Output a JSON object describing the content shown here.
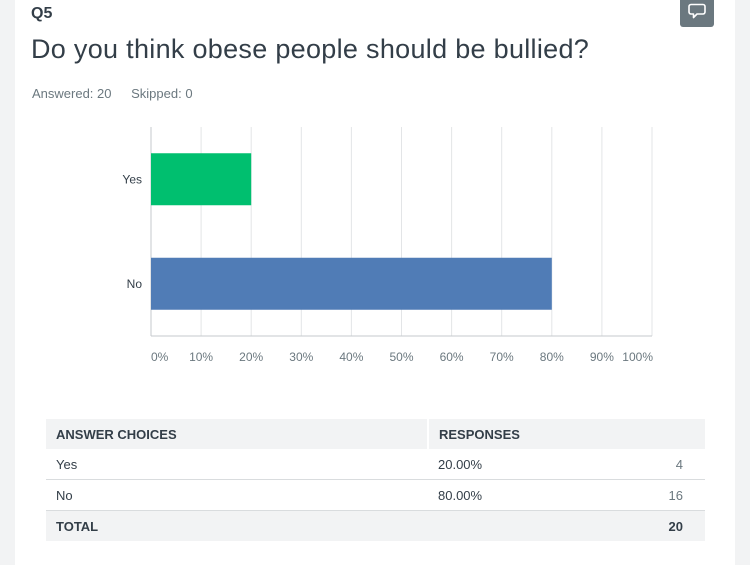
{
  "question": {
    "number": "Q5",
    "title": "Do you think obese people should be bullied?",
    "answered": "Answered: 20",
    "skipped": "Skipped: 0"
  },
  "colors": {
    "yes": "#00bf6f",
    "no": "#507cb6",
    "grid": "#e3e5e7",
    "axis": "#c5c9cc"
  },
  "chart_data": {
    "type": "bar",
    "orientation": "horizontal",
    "title": "Do you think obese people should be bullied?",
    "categories": [
      "Yes",
      "No"
    ],
    "values": [
      20,
      80
    ],
    "value_unit": "%",
    "xlim": [
      0,
      100
    ],
    "xticks": [
      "0%",
      "10%",
      "20%",
      "30%",
      "40%",
      "50%",
      "60%",
      "70%",
      "80%",
      "90%",
      "100%"
    ],
    "grid": true,
    "xlabel": "",
    "ylabel": ""
  },
  "table": {
    "headers": [
      "ANSWER CHOICES",
      "RESPONSES"
    ],
    "rows": [
      {
        "choice": "Yes",
        "percent": "20.00%",
        "count": "4"
      },
      {
        "choice": "No",
        "percent": "80.00%",
        "count": "16"
      }
    ],
    "total_label": "TOTAL",
    "total_count": "20"
  }
}
